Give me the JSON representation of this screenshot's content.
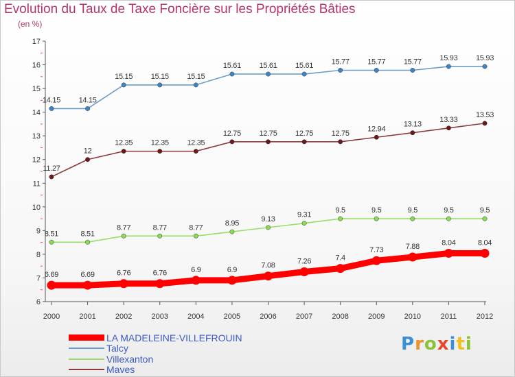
{
  "title": "Evolution du Taux de Taxe Foncière sur les Propriétés Bâties",
  "unit": "(en %)",
  "logo": "Proxiti",
  "chart_data": {
    "type": "line",
    "title": "Evolution du Taux de Taxe Foncière sur les Propriétés Bâties",
    "ylabel": "(en %)",
    "xlabel": "",
    "ylim": [
      6,
      17
    ],
    "yticks": [
      6,
      7,
      8,
      9,
      10,
      11,
      12,
      13,
      14,
      15,
      16,
      17
    ],
    "grid": false,
    "legend_position": "bottom-left",
    "x": [
      "2000",
      "2001",
      "2002",
      "2003",
      "2004",
      "2005",
      "2006",
      "2007",
      "2008",
      "2009",
      "2010",
      "2011",
      "2012"
    ],
    "series": [
      {
        "name": "LA MADELEINE-VILLEFROUIN",
        "color": "#ff0000",
        "marker_color": "#ff0000",
        "thick": true,
        "values": [
          6.69,
          6.69,
          6.76,
          6.76,
          6.9,
          6.9,
          7.08,
          7.26,
          7.4,
          7.73,
          7.88,
          8.04,
          8.04
        ],
        "labels": [
          "6.69",
          "6.69",
          "6.76",
          "6.76",
          "6.9",
          "6.9",
          "7.08",
          "7.26",
          "7.4",
          "7.73",
          "7.88",
          "8.04",
          "8.04"
        ]
      },
      {
        "name": "Talcy",
        "color": "#6c9ccc",
        "marker_color": "#3c86c8",
        "thick": false,
        "values": [
          14.15,
          14.15,
          15.15,
          15.15,
          15.15,
          15.61,
          15.61,
          15.61,
          15.77,
          15.77,
          15.77,
          15.93,
          15.93
        ],
        "labels": [
          "14.15",
          "14.15",
          "15.15",
          "15.15",
          "15.15",
          "15.61",
          "15.61",
          "15.61",
          "15.77",
          "15.77",
          "15.77",
          "15.93",
          "15.93"
        ]
      },
      {
        "name": "Villexanton",
        "color": "#99dd66",
        "marker_color": "#88dd55",
        "thick": false,
        "values": [
          8.51,
          8.51,
          8.77,
          8.77,
          8.77,
          8.95,
          9.13,
          9.31,
          9.5,
          9.5,
          9.5,
          9.5,
          9.5
        ],
        "labels": [
          "8.51",
          "8.51",
          "8.77",
          "8.77",
          "8.77",
          "8.95",
          "9.13",
          "9.31",
          "9.5",
          "9.5",
          "9.5",
          "9.5",
          "9.5"
        ]
      },
      {
        "name": "Maves",
        "color": "#8a3a3a",
        "marker_color": "#6a1a1a",
        "thick": false,
        "values": [
          11.27,
          12,
          12.35,
          12.35,
          12.35,
          12.75,
          12.75,
          12.75,
          12.75,
          12.94,
          13.13,
          13.33,
          13.53
        ],
        "labels": [
          "11.27",
          "12",
          "12.35",
          "12.35",
          "12.35",
          "12.75",
          "12.75",
          "12.75",
          "12.75",
          "12.94",
          "13.13",
          "13.33",
          "13.53"
        ]
      }
    ]
  }
}
